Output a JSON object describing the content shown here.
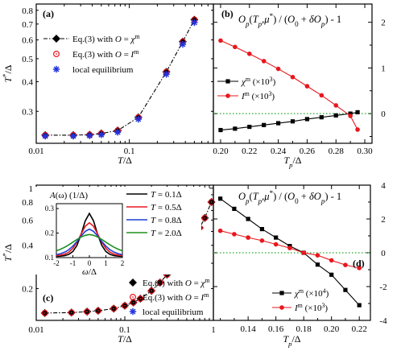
{
  "chart_data": [
    {
      "panel": "(a)",
      "type": "line",
      "xlabel": "T/Δ",
      "ylabel": "T*/Δ",
      "xscale": "log",
      "yscale": "log",
      "xlim": [
        0.01,
        0.8
      ],
      "ylim": [
        0.22,
        0.85
      ],
      "xtick_labels": [
        "0.01",
        "0.1"
      ],
      "ytick_labels": [
        "0.3",
        "0.4",
        "0.5",
        "0.6",
        "0.7",
        "0.8"
      ],
      "legend_position": "upper-left",
      "series": [
        {
          "name": "Eq.(3) with O = χ^m",
          "marker": "filled-diamond",
          "line": "dash-dot",
          "x": [
            0.0125,
            0.025,
            0.0375,
            0.05,
            0.075,
            0.125,
            0.25,
            0.375,
            0.5
          ],
          "y": [
            0.238,
            0.238,
            0.239,
            0.242,
            0.249,
            0.283,
            0.44,
            0.59,
            0.73
          ]
        },
        {
          "name": "Eq.(3) with O = I_L^m",
          "marker": "open-circle-dot",
          "x": [
            0.0125,
            0.025,
            0.0375,
            0.05,
            0.075,
            0.125,
            0.25,
            0.375,
            0.5
          ],
          "y": [
            0.238,
            0.238,
            0.239,
            0.242,
            0.249,
            0.283,
            0.44,
            0.59,
            0.73
          ]
        },
        {
          "name": "local equilibrium",
          "marker": "star",
          "x": [
            0.0125,
            0.025,
            0.0375,
            0.05,
            0.075,
            0.125,
            0.25,
            0.375,
            0.5
          ],
          "y": [
            0.236,
            0.236,
            0.237,
            0.239,
            0.245,
            0.278,
            0.43,
            0.575,
            0.71
          ]
        }
      ]
    },
    {
      "panel": "(b)",
      "type": "line",
      "title": "O_p(T_p, μ*) / (O_0 + δO_p) - 1",
      "xlabel": "T_p/Δ",
      "ylabel": "",
      "xlim": [
        0.195,
        0.305
      ],
      "ylim": [
        -0.65,
        2.4
      ],
      "xtick_labels": [
        "0.20",
        "0.22",
        "0.24",
        "0.26",
        "0.28",
        "0.30"
      ],
      "ytick_labels": [
        "0",
        "1",
        "2"
      ],
      "reference_line": {
        "y": 0,
        "style": "dotted",
        "color": "#22aa22"
      },
      "legend_position": "center-left",
      "series": [
        {
          "name": "χ^m (×10^3)",
          "marker": "filled-square",
          "color": "#000000",
          "x": [
            0.2,
            0.21,
            0.22,
            0.23,
            0.24,
            0.25,
            0.26,
            0.27,
            0.28,
            0.29,
            0.295
          ],
          "y": [
            -0.36,
            -0.33,
            -0.29,
            -0.25,
            -0.21,
            -0.17,
            -0.12,
            -0.08,
            -0.04,
            0.0,
            0.03
          ]
        },
        {
          "name": "I_L^m (×10^3)",
          "marker": "filled-circle",
          "color": "#e8171e",
          "x": [
            0.2,
            0.21,
            0.22,
            0.23,
            0.24,
            0.25,
            0.26,
            0.27,
            0.28,
            0.29,
            0.295
          ],
          "y": [
            1.6,
            1.46,
            1.31,
            1.15,
            0.98,
            0.8,
            0.6,
            0.4,
            0.18,
            -0.05,
            -0.35
          ]
        }
      ]
    },
    {
      "panel": "(c)",
      "type": "line",
      "xlabel": "T/Δ",
      "ylabel": "T*/Δ",
      "xscale": "log",
      "yscale": "log",
      "xlim": [
        0.01,
        1.0
      ],
      "ylim": [
        0.12,
        1.05
      ],
      "xtick_labels": [
        "0.01",
        "0.1",
        "1"
      ],
      "ytick_labels": [
        "0.2",
        "0.4",
        "0.6",
        "0.8",
        "1"
      ],
      "legend_position": "lower-right",
      "series": [
        {
          "name": "Eq.(3) with O = χ^m",
          "marker": "filled-diamond",
          "line": "dash-dot",
          "x": [
            0.0125,
            0.025,
            0.0375,
            0.05,
            0.075,
            0.1,
            0.125,
            0.15,
            0.2,
            0.25,
            0.3,
            0.4,
            0.5,
            0.6,
            0.7,
            0.8,
            0.95
          ],
          "y": [
            0.135,
            0.136,
            0.138,
            0.14,
            0.145,
            0.152,
            0.16,
            0.17,
            0.193,
            0.22,
            0.25,
            0.31,
            0.38,
            0.45,
            0.53,
            0.62,
            0.8
          ]
        },
        {
          "name": "Eq.(3) with O = I_L^m",
          "marker": "open-circle-dot",
          "x": [
            0.0125,
            0.025,
            0.0375,
            0.05,
            0.075,
            0.1,
            0.125,
            0.15,
            0.2,
            0.25,
            0.3,
            0.4,
            0.5,
            0.6,
            0.7,
            0.8,
            0.95
          ],
          "y": [
            0.135,
            0.136,
            0.138,
            0.14,
            0.145,
            0.152,
            0.16,
            0.17,
            0.193,
            0.22,
            0.25,
            0.31,
            0.38,
            0.45,
            0.53,
            0.62,
            0.8
          ]
        },
        {
          "name": "local equilibrium",
          "marker": "star",
          "x": [],
          "y": []
        }
      ],
      "inset": {
        "type": "line",
        "title": "A(ω) (1/Δ)",
        "xlabel": "ω/Δ",
        "xlim": [
          -2,
          2
        ],
        "ylim": [
          0.1,
          0.32
        ],
        "xtick_labels": [
          "-2",
          "-1",
          "0",
          "1",
          "2"
        ],
        "ytick_labels": [
          "0.1",
          "0.2",
          "0.3"
        ],
        "x": [
          -2,
          -1.75,
          -1.5,
          -1.25,
          -1,
          -0.75,
          -0.5,
          -0.25,
          0,
          0.25,
          0.5,
          0.75,
          1,
          1.25,
          1.5,
          1.75,
          2
        ],
        "series": [
          {
            "name": "T = 0.1Δ",
            "color": "#000000",
            "y": [
              0.105,
              0.106,
              0.108,
              0.113,
              0.125,
              0.15,
              0.195,
              0.25,
              0.28,
              0.25,
              0.195,
              0.15,
              0.125,
              0.113,
              0.108,
              0.106,
              0.105
            ]
          },
          {
            "name": "T = 0.5Δ",
            "color": "#e8171e",
            "y": [
              0.108,
              0.11,
              0.114,
              0.122,
              0.138,
              0.163,
              0.196,
              0.228,
              0.242,
              0.228,
              0.196,
              0.163,
              0.138,
              0.122,
              0.114,
              0.11,
              0.108
            ]
          },
          {
            "name": "T = 0.8Δ",
            "color": "#1f3fd6",
            "y": [
              0.112,
              0.116,
              0.122,
              0.132,
              0.147,
              0.166,
              0.188,
              0.207,
              0.216,
              0.207,
              0.188,
              0.166,
              0.147,
              0.132,
              0.122,
              0.116,
              0.112
            ]
          },
          {
            "name": "T = 2.0Δ",
            "color": "#1f8f1f",
            "y": [
              0.128,
              0.134,
              0.142,
              0.152,
              0.163,
              0.174,
              0.184,
              0.191,
              0.194,
              0.191,
              0.184,
              0.174,
              0.163,
              0.152,
              0.142,
              0.134,
              0.128
            ]
          }
        ]
      }
    },
    {
      "panel": "(d)",
      "type": "line",
      "title": "O_p(T_p, μ*) / (O_0 + δO_p) - 1",
      "xlabel": "T_p/Δ",
      "ylabel": "",
      "xlim": [
        0.115,
        0.228
      ],
      "ylim": [
        -4,
        4
      ],
      "xtick_labels": [
        "0.14",
        "0.16",
        "0.18",
        "0.20",
        "0.22"
      ],
      "ytick_labels": [
        "-4",
        "-2",
        "0",
        "2",
        "4"
      ],
      "reference_line": {
        "y": 0,
        "style": "dotted",
        "color": "#22aa22"
      },
      "legend_position": "lower-right",
      "series": [
        {
          "name": "χ^m (×10^4)",
          "marker": "filled-square",
          "color": "#000000",
          "x": [
            0.12,
            0.13,
            0.14,
            0.15,
            0.16,
            0.17,
            0.18,
            0.19,
            0.2,
            0.21,
            0.22
          ],
          "y": [
            3.2,
            2.6,
            2.0,
            1.4,
            0.9,
            0.4,
            0.0,
            -0.7,
            -1.3,
            -2.2,
            -3.1
          ]
        },
        {
          "name": "I_L^m (×10^3)",
          "marker": "filled-circle",
          "color": "#e8171e",
          "x": [
            0.12,
            0.13,
            0.14,
            0.15,
            0.16,
            0.17,
            0.18,
            0.19,
            0.2,
            0.21,
            0.22
          ],
          "y": [
            1.3,
            1.1,
            0.9,
            0.72,
            0.5,
            0.28,
            0.0,
            -0.15,
            -0.45,
            -0.72,
            -0.9
          ]
        }
      ]
    }
  ]
}
